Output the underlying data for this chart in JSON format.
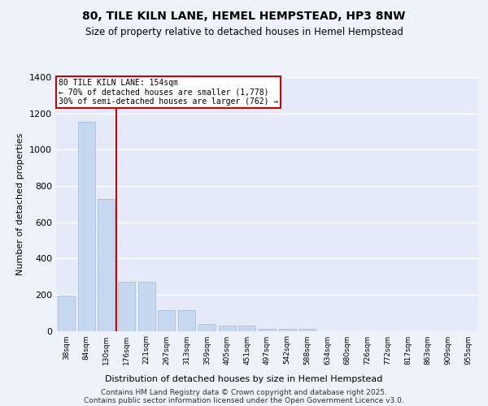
{
  "title1": "80, TILE KILN LANE, HEMEL HEMPSTEAD, HP3 8NW",
  "title2": "Size of property relative to detached houses in Hemel Hempstead",
  "xlabel": "Distribution of detached houses by size in Hemel Hempstead",
  "ylabel": "Number of detached properties",
  "categories": [
    "38sqm",
    "84sqm",
    "130sqm",
    "176sqm",
    "221sqm",
    "267sqm",
    "313sqm",
    "359sqm",
    "405sqm",
    "451sqm",
    "497sqm",
    "542sqm",
    "588sqm",
    "634sqm",
    "680sqm",
    "726sqm",
    "772sqm",
    "817sqm",
    "863sqm",
    "909sqm",
    "955sqm"
  ],
  "values": [
    195,
    1155,
    730,
    270,
    270,
    115,
    115,
    40,
    30,
    30,
    10,
    10,
    10,
    0,
    0,
    0,
    0,
    0,
    0,
    0,
    0
  ],
  "bar_color": "#c5d8f0",
  "bar_edge_color": "#a0b8d8",
  "red_line_x": 2.5,
  "red_line_label": "80 TILE KILN LANE: 154sqm",
  "annotation_line1": "← 70% of detached houses are smaller (1,778)",
  "annotation_line2": "30% of semi-detached houses are larger (762) →",
  "annotation_box_color": "#ffffff",
  "annotation_box_edge": "#cc0000",
  "ylim": [
    0,
    1400
  ],
  "yticks": [
    0,
    200,
    400,
    600,
    800,
    1000,
    1200,
    1400
  ],
  "bg_color": "#eef2fb",
  "plot_bg_color": "#e4eaf7",
  "grid_color": "#ffffff",
  "footer1": "Contains HM Land Registry data © Crown copyright and database right 2025.",
  "footer2": "Contains public sector information licensed under the Open Government Licence v3.0."
}
